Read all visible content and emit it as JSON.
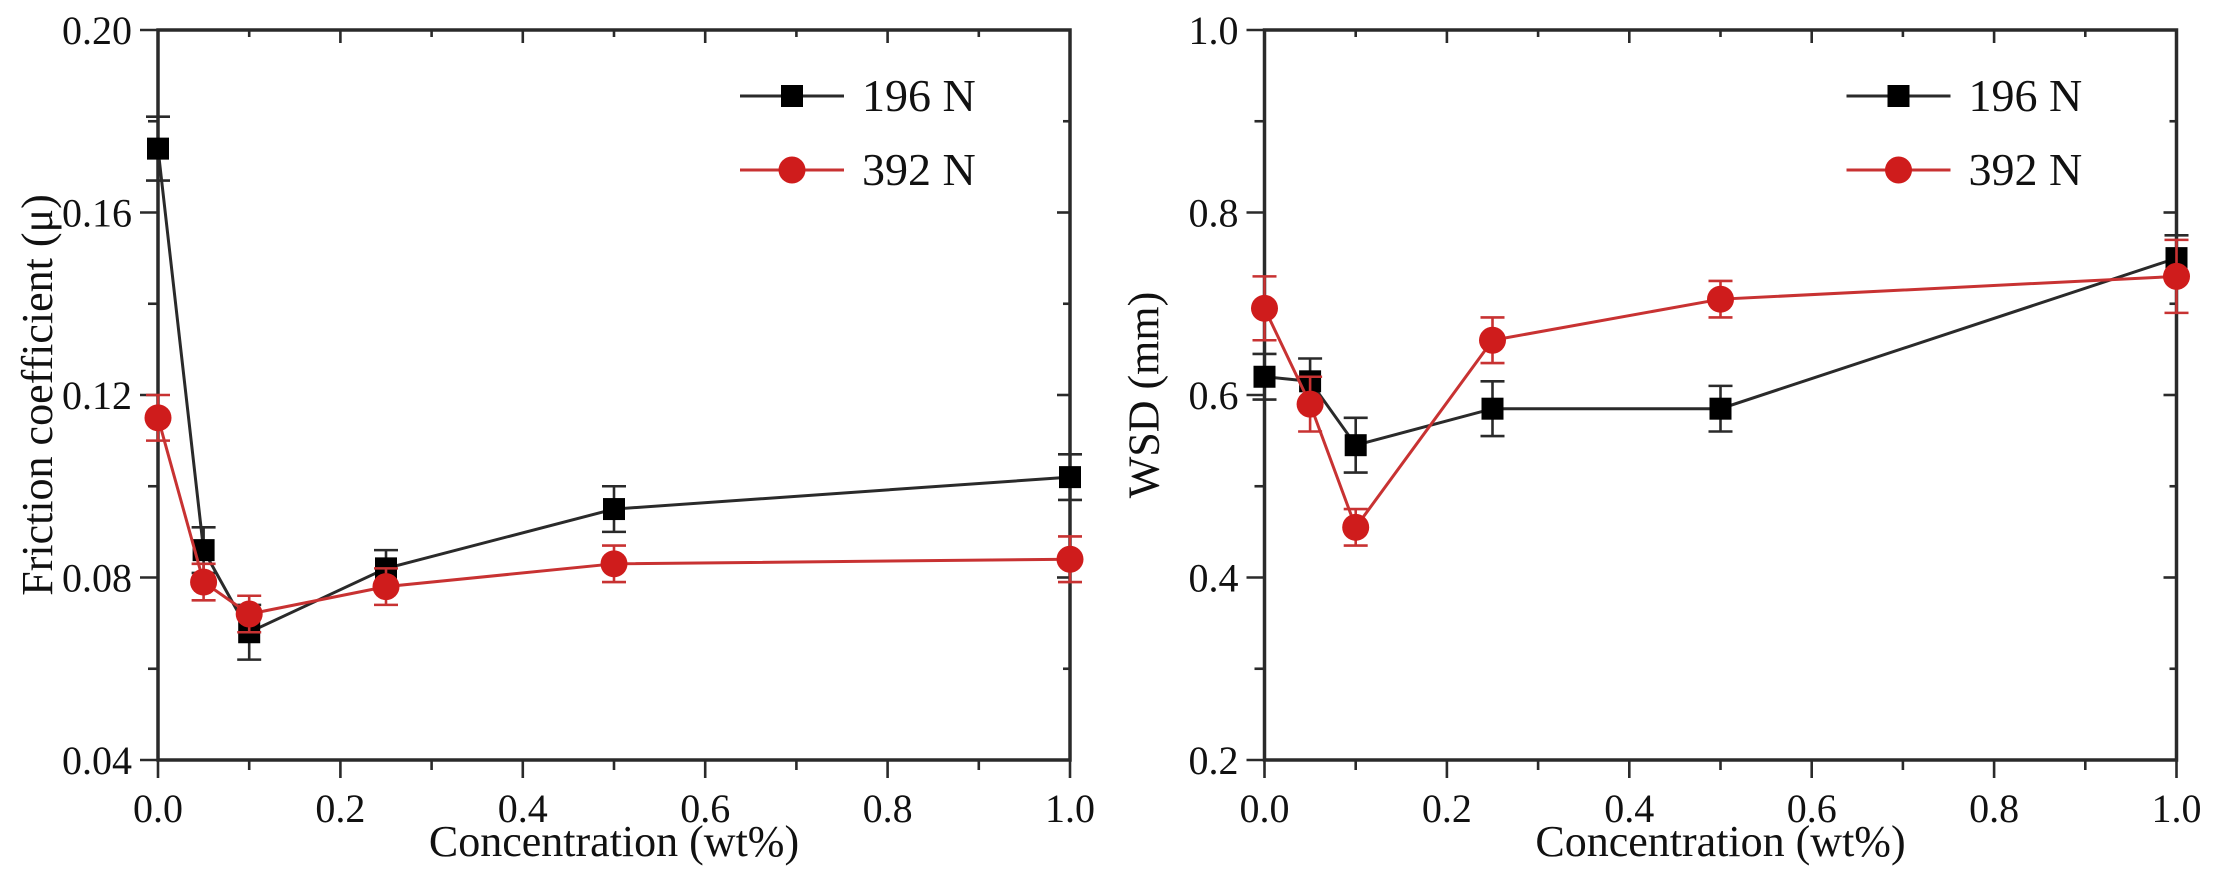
{
  "figure": {
    "background": "#ffffff",
    "axis_color": "#2a2a2a",
    "text_color": "#111111"
  },
  "chart_data": [
    {
      "type": "line",
      "panel": "left",
      "title": "",
      "xlabel": "Concentration (wt%)",
      "ylabel": "Friction coefficient (μ)",
      "xlim": [
        0.0,
        1.0
      ],
      "ylim": [
        0.04,
        0.2
      ],
      "grid": false,
      "legend_position": "upper-right-inside",
      "x_ticks": {
        "major": [
          0.0,
          0.2,
          0.4,
          0.6,
          0.8,
          1.0
        ],
        "labels": [
          "0.0",
          "0.2",
          "0.4",
          "0.6",
          "0.8",
          "1.0"
        ],
        "minor": [
          0.1,
          0.3,
          0.5,
          0.7,
          0.9
        ]
      },
      "y_ticks": {
        "major": [
          0.04,
          0.08,
          0.12,
          0.16,
          0.2
        ],
        "labels": [
          "0.04",
          "0.08",
          "0.12",
          "0.16",
          "0.20"
        ],
        "minor": [
          0.06,
          0.1,
          0.14,
          0.18
        ]
      },
      "x": [
        0.0,
        0.05,
        0.1,
        0.25,
        0.5,
        1.0
      ],
      "series": [
        {
          "name": "196 N",
          "marker": "square",
          "line_color": "#2a2a2a",
          "marker_color": "#000000",
          "values": [
            0.174,
            0.086,
            0.068,
            0.082,
            0.095,
            0.102
          ],
          "errors": [
            0.007,
            0.005,
            0.006,
            0.004,
            0.005,
            0.005
          ]
        },
        {
          "name": "392 N",
          "marker": "circle",
          "line_color": "#c83232",
          "marker_color": "#cf1c1c",
          "values": [
            0.115,
            0.079,
            0.072,
            0.078,
            0.083,
            0.084
          ],
          "errors": [
            0.005,
            0.004,
            0.004,
            0.004,
            0.004,
            0.005
          ]
        }
      ]
    },
    {
      "type": "line",
      "panel": "right",
      "title": "",
      "xlabel": "Concentration (wt%)",
      "ylabel": "WSD (mm)",
      "xlim": [
        0.0,
        1.0
      ],
      "ylim": [
        0.2,
        1.0
      ],
      "grid": false,
      "legend_position": "upper-right-inside",
      "x_ticks": {
        "major": [
          0.0,
          0.2,
          0.4,
          0.6,
          0.8,
          1.0
        ],
        "labels": [
          "0.0",
          "0.2",
          "0.4",
          "0.6",
          "0.8",
          "1.0"
        ],
        "minor": [
          0.1,
          0.3,
          0.5,
          0.7,
          0.9
        ]
      },
      "y_ticks": {
        "major": [
          0.2,
          0.4,
          0.6,
          0.8,
          1.0
        ],
        "labels": [
          "0.2",
          "0.4",
          "0.6",
          "0.8",
          "1.0"
        ],
        "minor": [
          0.3,
          0.5,
          0.7,
          0.9
        ]
      },
      "x": [
        0.0,
        0.05,
        0.1,
        0.25,
        0.5,
        1.0
      ],
      "series": [
        {
          "name": "196 N",
          "marker": "square",
          "line_color": "#2a2a2a",
          "marker_color": "#000000",
          "values": [
            0.62,
            0.615,
            0.545,
            0.585,
            0.585,
            0.75
          ],
          "errors": [
            0.025,
            0.025,
            0.03,
            0.03,
            0.025,
            0.025
          ]
        },
        {
          "name": "392 N",
          "marker": "circle",
          "line_color": "#c83232",
          "marker_color": "#cf1c1c",
          "values": [
            0.695,
            0.59,
            0.455,
            0.66,
            0.705,
            0.73
          ],
          "errors": [
            0.035,
            0.03,
            0.02,
            0.025,
            0.02,
            0.04
          ]
        }
      ]
    }
  ]
}
